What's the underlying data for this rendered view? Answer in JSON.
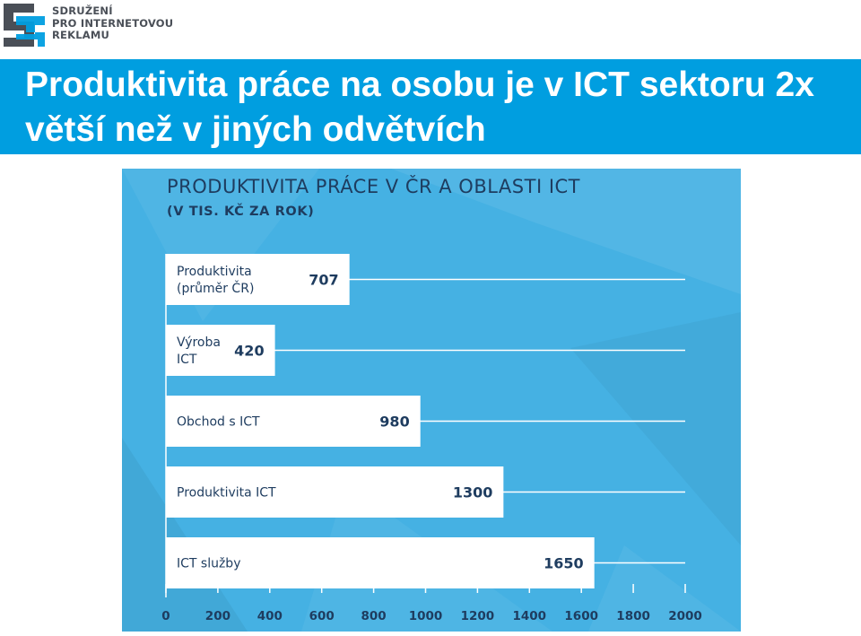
{
  "logo": {
    "icon": "sir-logo-mark",
    "lines": [
      "SDRUŽENÍ",
      "PRO INTERNETOVOU",
      "REKLAMU"
    ],
    "color": "#4a4f57"
  },
  "slide": {
    "title": "Produktivita práce na osobu je v ICT sektoru 2x větší než v jiných odvětvích",
    "title_bar_color": "#009ee0",
    "panel_color": "#45b1e3"
  },
  "chart_data": {
    "type": "bar",
    "orientation": "horizontal",
    "title": "PRODUKTIVITA PRÁCE V ČR A OBLASTI ICT",
    "subtitle": "(V TIS. KČ ZA ROK)",
    "categories": [
      [
        "Produktivita",
        "(průměr ČR)"
      ],
      [
        "Výroba",
        "ICT"
      ],
      [
        "Obchod s ICT"
      ],
      [
        "Produktivita ICT"
      ],
      [
        "ICT služby"
      ]
    ],
    "values": [
      707,
      420,
      980,
      1300,
      1650
    ],
    "value_labels": [
      "707",
      "420",
      "980",
      "1300",
      "1650"
    ],
    "xlim": [
      0,
      2000
    ],
    "xticks": [
      "0",
      "200",
      "400",
      "600",
      "800",
      "1000",
      "1200",
      "1400",
      "1600",
      "1800",
      "2000"
    ],
    "grid": true,
    "bar_color": "#ffffff",
    "text_color": "#1e3c5f"
  }
}
